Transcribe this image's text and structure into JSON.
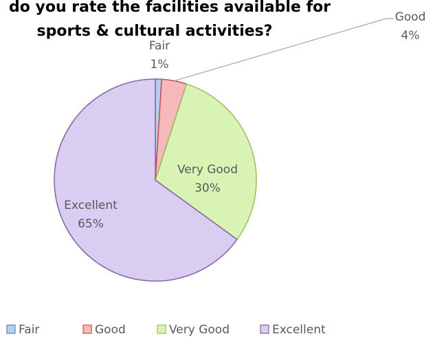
{
  "chart_data": {
    "type": "pie",
    "title_lines": [
      "do you rate the facilities available for",
      "sports & cultural activities?"
    ],
    "categories": [
      "Fair",
      "Good",
      "Very Good",
      "Excellent"
    ],
    "values": [
      1,
      4,
      30,
      65
    ],
    "value_labels": [
      "1%",
      "4%",
      "30%",
      "65%"
    ],
    "colors": [
      "#b9cdef",
      "#f4b9b8",
      "#d9f3b4",
      "#d9cdf1"
    ],
    "border_colors": [
      "#4f81bd",
      "#c0504d",
      "#9bbb59",
      "#8064a2"
    ],
    "legend_position": "bottom-left"
  }
}
